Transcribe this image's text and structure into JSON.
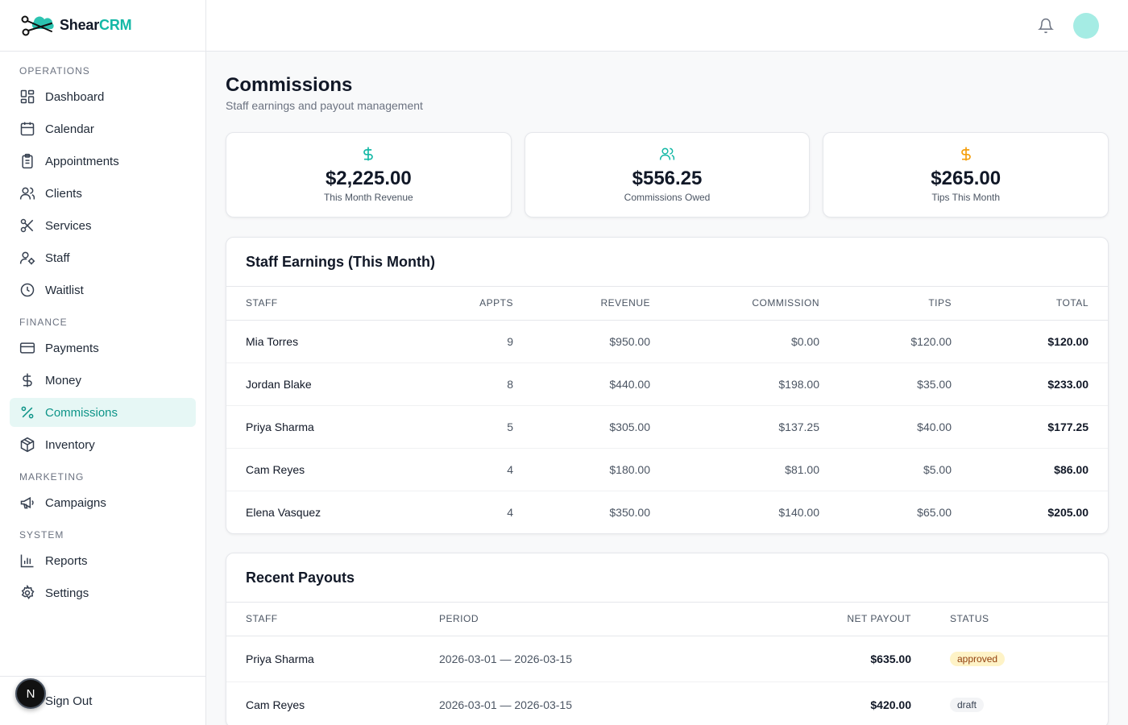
{
  "brand": {
    "name_main": "Shear",
    "name_accent": "CRM",
    "accent_color": "#14b8a6"
  },
  "sidebar": {
    "sections": [
      {
        "label": "OPERATIONS",
        "items": [
          {
            "label": "Dashboard",
            "icon": "dashboard-icon"
          },
          {
            "label": "Calendar",
            "icon": "calendar-icon"
          },
          {
            "label": "Appointments",
            "icon": "clipboard-icon"
          },
          {
            "label": "Clients",
            "icon": "users-icon"
          },
          {
            "label": "Services",
            "icon": "scissors-icon"
          },
          {
            "label": "Staff",
            "icon": "user-cog-icon"
          },
          {
            "label": "Waitlist",
            "icon": "clock-icon"
          }
        ]
      },
      {
        "label": "FINANCE",
        "items": [
          {
            "label": "Payments",
            "icon": "credit-card-icon"
          },
          {
            "label": "Money",
            "icon": "dollar-icon"
          },
          {
            "label": "Commissions",
            "icon": "percent-icon",
            "active": true
          },
          {
            "label": "Inventory",
            "icon": "package-icon"
          }
        ]
      },
      {
        "label": "MARKETING",
        "items": [
          {
            "label": "Campaigns",
            "icon": "megaphone-icon"
          }
        ]
      },
      {
        "label": "SYSTEM",
        "items": [
          {
            "label": "Reports",
            "icon": "bar-chart-icon"
          },
          {
            "label": "Settings",
            "icon": "gear-icon"
          }
        ]
      }
    ],
    "sign_out": "Sign Out",
    "badge_letter": "N"
  },
  "header": {
    "title": "Commissions",
    "subtitle": "Staff earnings and payout management"
  },
  "stats": [
    {
      "value": "$2,225.00",
      "label": "This Month Revenue",
      "icon": "dollar-icon",
      "color": "#14b8a6"
    },
    {
      "value": "$556.25",
      "label": "Commissions Owed",
      "icon": "users-icon",
      "color": "#14b8a6"
    },
    {
      "value": "$265.00",
      "label": "Tips This Month",
      "icon": "dollar-icon",
      "color": "#f59e0b"
    }
  ],
  "earnings": {
    "title": "Staff Earnings (This Month)",
    "columns": [
      "STAFF",
      "APPTS",
      "REVENUE",
      "COMMISSION",
      "TIPS",
      "TOTAL"
    ],
    "rows": [
      {
        "staff": "Mia Torres",
        "appts": "9",
        "revenue": "$950.00",
        "commission": "$0.00",
        "tips": "$120.00",
        "total": "$120.00"
      },
      {
        "staff": "Jordan Blake",
        "appts": "8",
        "revenue": "$440.00",
        "commission": "$198.00",
        "tips": "$35.00",
        "total": "$233.00"
      },
      {
        "staff": "Priya Sharma",
        "appts": "5",
        "revenue": "$305.00",
        "commission": "$137.25",
        "tips": "$40.00",
        "total": "$177.25"
      },
      {
        "staff": "Cam Reyes",
        "appts": "4",
        "revenue": "$180.00",
        "commission": "$81.00",
        "tips": "$5.00",
        "total": "$86.00"
      },
      {
        "staff": "Elena Vasquez",
        "appts": "4",
        "revenue": "$350.00",
        "commission": "$140.00",
        "tips": "$65.00",
        "total": "$205.00"
      }
    ]
  },
  "payouts": {
    "title": "Recent Payouts",
    "columns": [
      "STAFF",
      "PERIOD",
      "NET PAYOUT",
      "STATUS"
    ],
    "rows": [
      {
        "staff": "Priya Sharma",
        "period": "2026-03-01 — 2026-03-15",
        "net": "$635.00",
        "status": "approved"
      },
      {
        "staff": "Cam Reyes",
        "period": "2026-03-01 — 2026-03-15",
        "net": "$420.00",
        "status": "draft"
      }
    ]
  }
}
